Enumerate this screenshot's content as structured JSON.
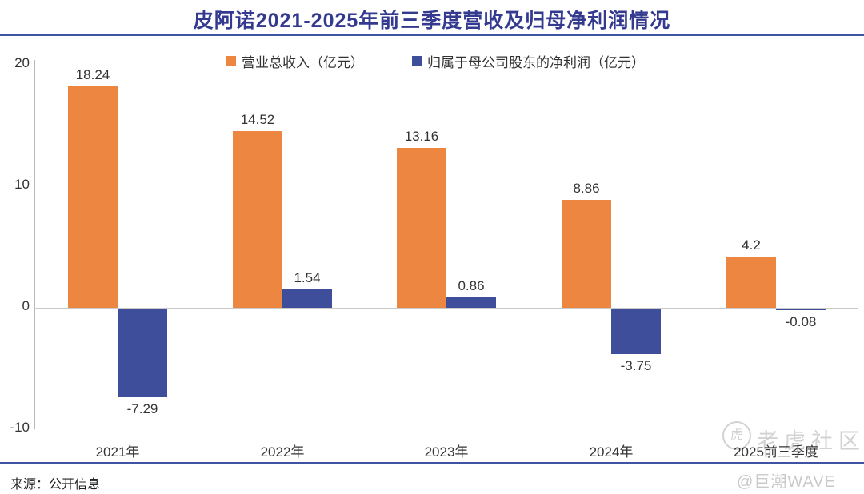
{
  "chart_data": {
    "type": "bar",
    "title": "皮阿诺2021-2025年前三季度营收及归母净利润情况",
    "categories": [
      "2021年",
      "2022年",
      "2023年",
      "2024年",
      "2025前三季度"
    ],
    "series": [
      {
        "name": "营业总收入（亿元）",
        "color": "#ED8640",
        "values": [
          18.24,
          14.52,
          13.16,
          8.86,
          4.2
        ]
      },
      {
        "name": "归属于母公司股东的净利润（亿元）",
        "color": "#3F4E9A",
        "values": [
          -7.29,
          1.54,
          0.86,
          -3.75,
          -0.08
        ]
      }
    ],
    "value_labels": [
      [
        "18.24",
        "14.52",
        "13.16",
        "8.86",
        "4.2"
      ],
      [
        "-7.29",
        "1.54",
        "0.86",
        "-3.75",
        "-0.08"
      ]
    ],
    "ylim": [
      -10,
      20
    ],
    "yticks": [
      20,
      10,
      0,
      -10
    ],
    "grid": false,
    "legend_position": "top"
  },
  "footer": {
    "source": "来源：公开信息"
  },
  "watermark": {
    "logo_glyph": "虎",
    "community": "老虎社区",
    "handle": "@巨潮WAVE"
  },
  "colors": {
    "title_blue": "#333A8F",
    "rule_blue": "#4053A3",
    "revenue_orange": "#ED8640",
    "profit_blue": "#3F4E9A",
    "axis_gray": "#C9C9C9",
    "label_text": "#333333",
    "watermark_gray": "#D2D2D2"
  }
}
